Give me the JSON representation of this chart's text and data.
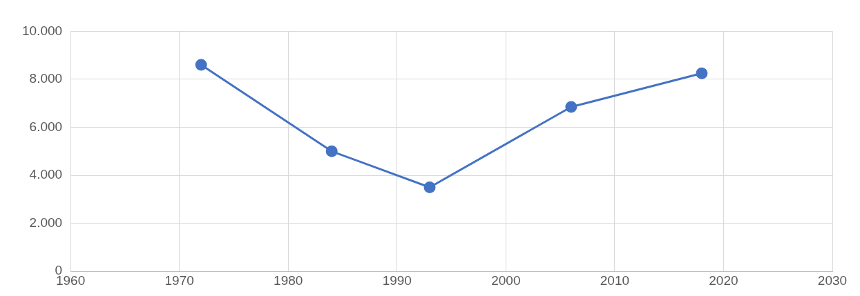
{
  "chart_data": {
    "type": "line",
    "x": [
      1972,
      1984,
      1993,
      2006,
      2018
    ],
    "series": [
      {
        "color": "#4472c4",
        "values": [
          8600,
          5000,
          3500,
          6850,
          8250
        ]
      }
    ],
    "xlim": [
      1960,
      2030
    ],
    "xticks": [
      1960,
      1970,
      1980,
      1990,
      2000,
      2010,
      2020,
      2030
    ],
    "ylim": [
      0,
      10000
    ],
    "yticks": [
      0,
      {
        "value": 2000,
        "label": "2.000"
      },
      {
        "value": 4000,
        "label": "4.000"
      },
      {
        "value": 6000,
        "label": "6.000"
      },
      {
        "value": 8000,
        "label": "8.000"
      },
      {
        "value": 10000,
        "label": "10.000"
      }
    ],
    "grid": true,
    "marker": "circle",
    "line_style": "solid",
    "legend": false
  }
}
